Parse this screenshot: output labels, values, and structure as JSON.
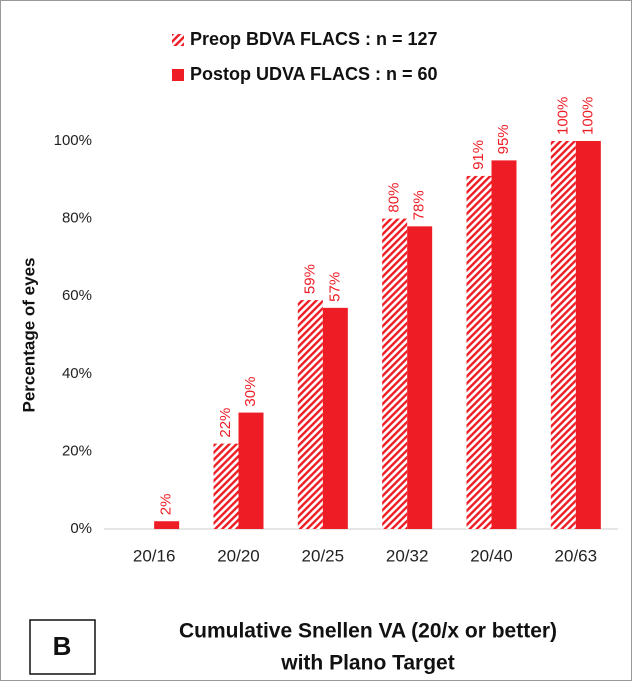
{
  "chart_data": {
    "type": "bar",
    "categories": [
      "20/16",
      "20/20",
      "20/25",
      "20/32",
      "20/40",
      "20/63"
    ],
    "series": [
      {
        "name": "Preop BDVA FLACS : n = 127",
        "color": "#ee1c25",
        "hatch": true,
        "values": [
          null,
          22,
          59,
          80,
          91,
          100
        ],
        "value_labels": [
          null,
          "22%",
          "59%",
          "80%",
          "91%",
          "100%"
        ]
      },
      {
        "name": "Postop UDVA FLACS :  n = 60",
        "color": "#ee1c25",
        "hatch": false,
        "values": [
          2,
          30,
          57,
          78,
          95,
          100
        ],
        "value_labels": [
          "2%",
          "30%",
          "57%",
          "78%",
          "95%",
          "100%"
        ]
      }
    ],
    "ylabel": "Percentage of eyes",
    "xlabel": [
      "Cumulative Snellen VA (20/x or better)",
      "with Plano Target"
    ],
    "panel_label": "B",
    "ylim": [
      0,
      100
    ],
    "yticks": [
      {
        "value": 0,
        "label": "0%"
      },
      {
        "value": 20,
        "label": "20%"
      },
      {
        "value": 40,
        "label": "40%"
      },
      {
        "value": 60,
        "label": "60%"
      },
      {
        "value": 80,
        "label": "80%"
      },
      {
        "value": 100,
        "label": "100%"
      }
    ],
    "grid": false
  }
}
